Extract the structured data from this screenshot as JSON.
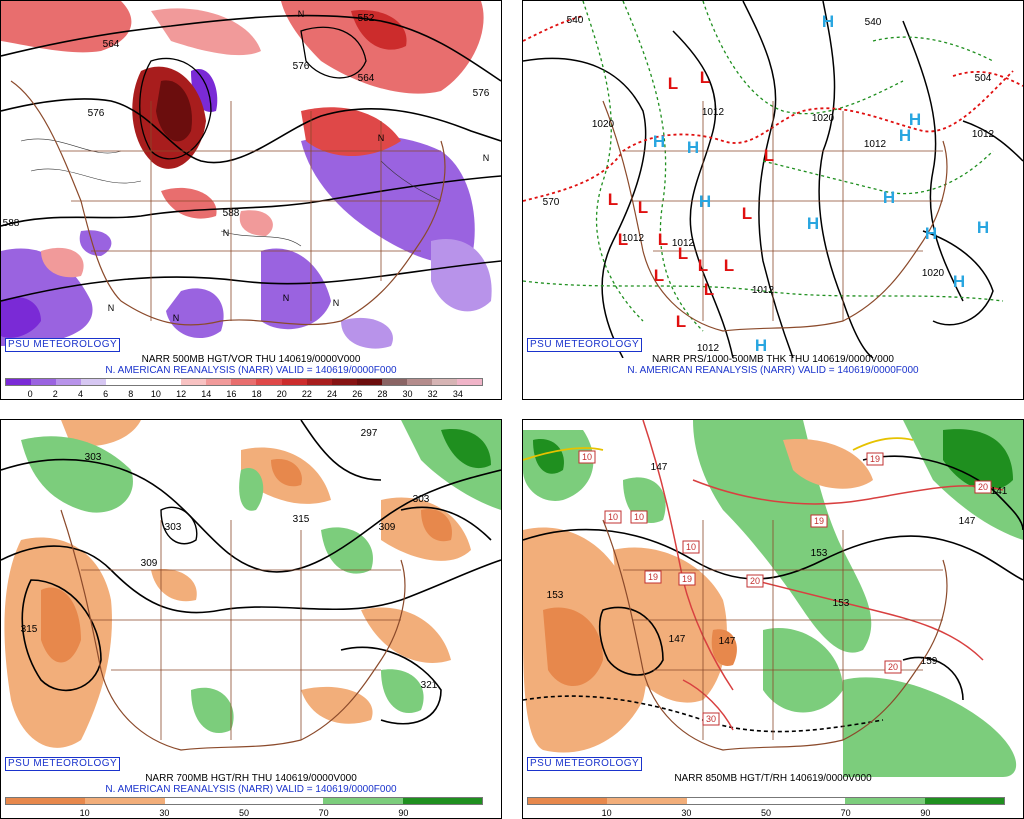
{
  "panels": {
    "tl": {
      "badge": "PSU METEOROLOGY",
      "caption1": "NARR 500MB HGT/VOR THU 140619/0000V000",
      "caption2": "N. AMERICAN REANALYSIS (NARR) VALID = 140619/0000F000",
      "contour_labels": [
        "564",
        "576",
        "552",
        "564",
        "576",
        "588",
        "588",
        "576"
      ],
      "colorbar": {
        "colors": [
          "#7a2ad6",
          "#9a63e0",
          "#b893ea",
          "#d6c7f2",
          "#ffffff",
          "#ffffff",
          "#ffffff",
          "#f8c2c2",
          "#f19a9a",
          "#e86e6e",
          "#df4848",
          "#cc2c2c",
          "#a81d1d",
          "#861313",
          "#6b0d0d",
          "#8a6464",
          "#b48c8c",
          "#d6b4b4",
          "#f0b4c8"
        ],
        "labels": [
          "0",
          "2",
          "4",
          "6",
          "8",
          "10",
          "12",
          "14",
          "16",
          "18",
          "20",
          "22",
          "24",
          "26",
          "28",
          "30",
          "32",
          "34"
        ]
      },
      "vort_marks": [
        "N",
        "N",
        "N",
        "N",
        "N",
        "N",
        "N",
        "N"
      ]
    },
    "tr": {
      "badge": "PSU METEOROLOGY",
      "caption1": "NARR PRS/1000-500MB THK THU 140619/0000V000",
      "caption2": "N. AMERICAN REANALYSIS (NARR) VALID = 140619/0000F000",
      "contour_labels": [
        "540",
        "540",
        "1012",
        "1020",
        "1020",
        "1012",
        "570",
        "1012",
        "1012",
        "1012",
        "1012",
        "1020",
        "504",
        "1012"
      ],
      "high_symbol": "H",
      "low_symbol": "L"
    },
    "bl": {
      "badge": "PSU METEOROLOGY",
      "caption1": "NARR 700MB HGT/RH THU 140619/0000V000",
      "caption2": "N. AMERICAN REANALYSIS (NARR) VALID = 140619/0000F000",
      "contour_labels": [
        "297",
        "303",
        "303",
        "309",
        "315",
        "309",
        "303",
        "315",
        "321"
      ],
      "colorbar": {
        "colors": [
          "#e7884c",
          "#f2ae7a",
          "#ffffff",
          "#ffffff",
          "#7ccd7c",
          "#1f8f1f"
        ],
        "labels": [
          "10",
          "30",
          "50",
          "70",
          "90"
        ]
      }
    },
    "br": {
      "badge": "PSU METEOROLOGY",
      "caption1": "NARR 850MB HGT/T/RH 140619/0000V000",
      "caption2": "",
      "contour_labels": [
        "147",
        "153",
        "147",
        "147",
        "153",
        "153",
        "141",
        "147",
        "159"
      ],
      "temp_labels": [
        "10",
        "10",
        "19",
        "10",
        "10",
        "19",
        "19",
        "20",
        "20",
        "30",
        "19",
        "20"
      ],
      "colorbar": {
        "colors": [
          "#e7884c",
          "#f2ae7a",
          "#ffffff",
          "#ffffff",
          "#7ccd7c",
          "#1f8f1f"
        ],
        "labels": [
          "10",
          "30",
          "50",
          "70",
          "90"
        ]
      }
    }
  }
}
